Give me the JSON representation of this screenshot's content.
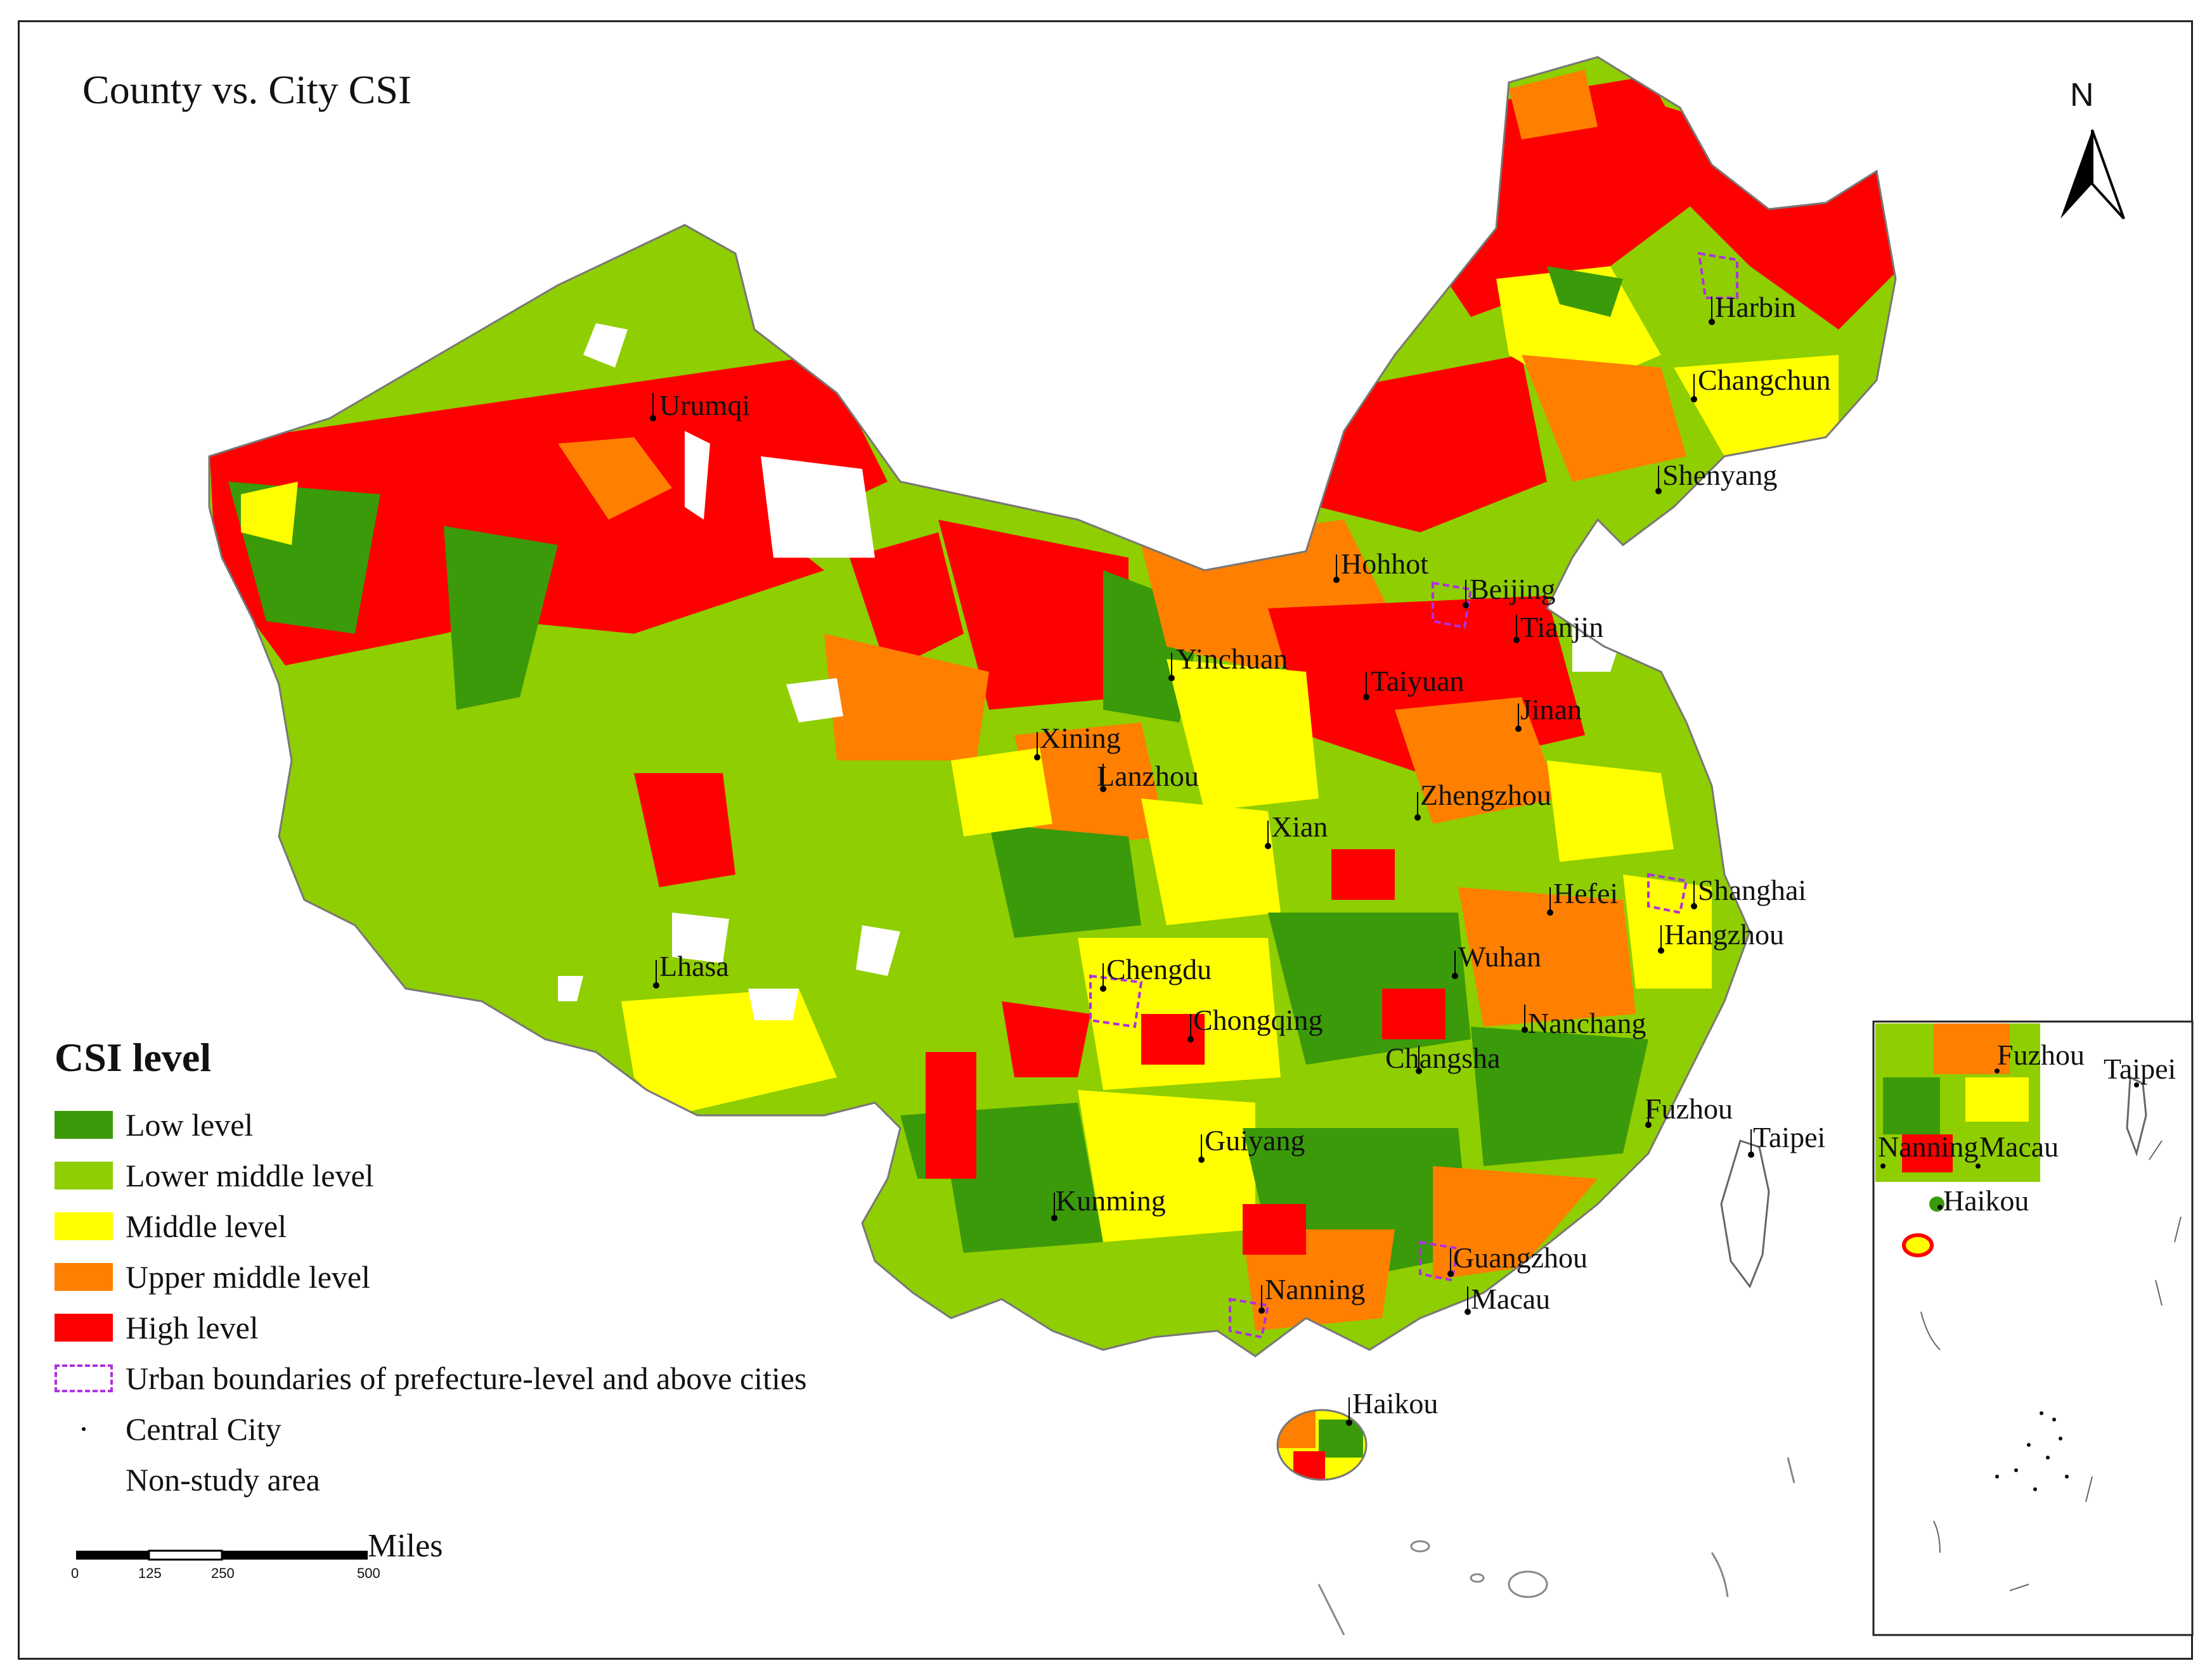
{
  "title": "County vs. City CSI",
  "north_label": "N",
  "legend": {
    "title": "CSI level",
    "items": [
      {
        "label": "Low level",
        "color": "#3a9a0a",
        "kind": "fill"
      },
      {
        "label": "Lower middle level",
        "color": "#8fce00",
        "kind": "fill"
      },
      {
        "label": "Middle level",
        "color": "#ffff00",
        "kind": "fill"
      },
      {
        "label": "Upper middle level",
        "color": "#ff7f00",
        "kind": "fill"
      },
      {
        "label": "High level",
        "color": "#ff0000",
        "kind": "fill"
      },
      {
        "label": "Urban boundaries of prefecture-level and above cities",
        "color": "#b030e0",
        "kind": "dashed"
      },
      {
        "label": "Central City",
        "color": "#000000",
        "kind": "dot"
      },
      {
        "label": "Non-study area",
        "color": "#ffffff",
        "kind": "blank"
      }
    ]
  },
  "scale_bar": {
    "ticks": [
      "0",
      "125",
      "250",
      "500"
    ],
    "unit": "Miles"
  },
  "cities": [
    {
      "name": "Urumqi"
    },
    {
      "name": "Harbin"
    },
    {
      "name": "Changchun"
    },
    {
      "name": "Shenyang"
    },
    {
      "name": "Hohhot"
    },
    {
      "name": "Beijing"
    },
    {
      "name": "Tianjin"
    },
    {
      "name": "Yinchuan"
    },
    {
      "name": "Taiyuan"
    },
    {
      "name": "Jinan"
    },
    {
      "name": "Xining"
    },
    {
      "name": "Lanzhou"
    },
    {
      "name": "Zhengzhou"
    },
    {
      "name": "Xian"
    },
    {
      "name": "Shanghai"
    },
    {
      "name": "Hefei"
    },
    {
      "name": "Hangzhou"
    },
    {
      "name": "Lhasa"
    },
    {
      "name": "Chengdu"
    },
    {
      "name": "Wuhan"
    },
    {
      "name": "Chongqing"
    },
    {
      "name": "Nanchang"
    },
    {
      "name": "Changsha"
    },
    {
      "name": "Fuzhou"
    },
    {
      "name": "Taipei"
    },
    {
      "name": "Guiyang"
    },
    {
      "name": "Kunming"
    },
    {
      "name": "Guangzhou"
    },
    {
      "name": "Nanning"
    },
    {
      "name": "Macau"
    },
    {
      "name": "Haikou"
    }
  ],
  "inset_cities": [
    {
      "name": "Fuzhou"
    },
    {
      "name": "Taipei"
    },
    {
      "name": "Nanning"
    },
    {
      "name": "Macau"
    },
    {
      "name": "Haikou"
    }
  ]
}
